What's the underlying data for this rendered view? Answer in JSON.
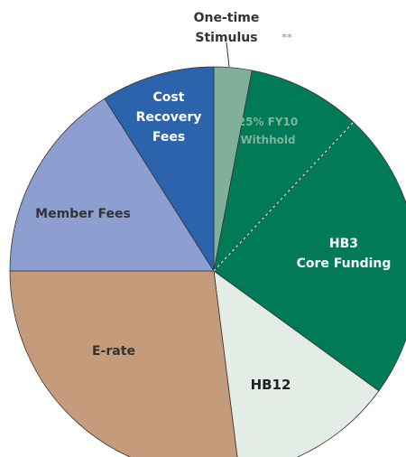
{
  "chart_data": {
    "type": "pie",
    "categories": [
      "One-time\nStimulus",
      "25% FY10\nWithhold",
      "HB3\nCore Funding",
      "HB12",
      "E-rate",
      "Member Fees",
      "Cost\nRecovery\nFees"
    ],
    "values": [
      3,
      9,
      23,
      13,
      27,
      16,
      9
    ],
    "colors": [
      "#80b09b",
      "#007a57",
      "#007a57",
      "#e3ece5",
      "#c59c7b",
      "#8d9fd1",
      "#2b63ad"
    ],
    "label_colors": [
      "#333333",
      "#7fb39c",
      "#ffffff",
      "#222222",
      "#333333",
      "#333333",
      "#ffffff"
    ],
    "annotation": "**"
  }
}
